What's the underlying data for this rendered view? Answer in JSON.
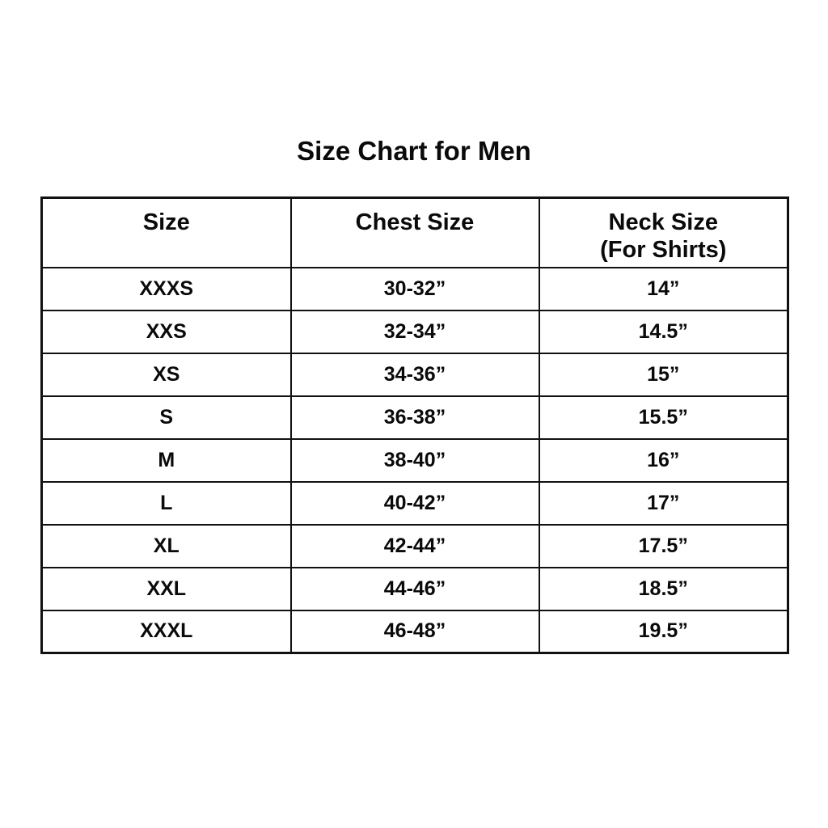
{
  "chart_data": {
    "type": "table",
    "title": "Size Chart for Men",
    "columns": [
      "Size",
      "Chest Size",
      "Neck Size (For Shirts)"
    ],
    "header": {
      "col1": "Size",
      "col2": "Chest Size",
      "col3_line1": "Neck Size",
      "col3_line2": "(For Shirts)"
    },
    "rows": [
      [
        "XXXS",
        "30-32”",
        "14”"
      ],
      [
        "XXS",
        "32-34”",
        "14.5”"
      ],
      [
        "XS",
        "34-36”",
        "15”"
      ],
      [
        "S",
        "36-38”",
        "15.5”"
      ],
      [
        "M",
        "38-40”",
        "16”"
      ],
      [
        "L",
        "40-42”",
        "17”"
      ],
      [
        "XL",
        "42-44”",
        "17.5”"
      ],
      [
        "XXL",
        "44-46”",
        "18.5”"
      ],
      [
        "XXXL",
        "46-48”",
        "19.5”"
      ]
    ],
    "layout": {
      "background": "#ffffff",
      "border_color": "#111111",
      "text_color": "#0a0a0a"
    }
  }
}
